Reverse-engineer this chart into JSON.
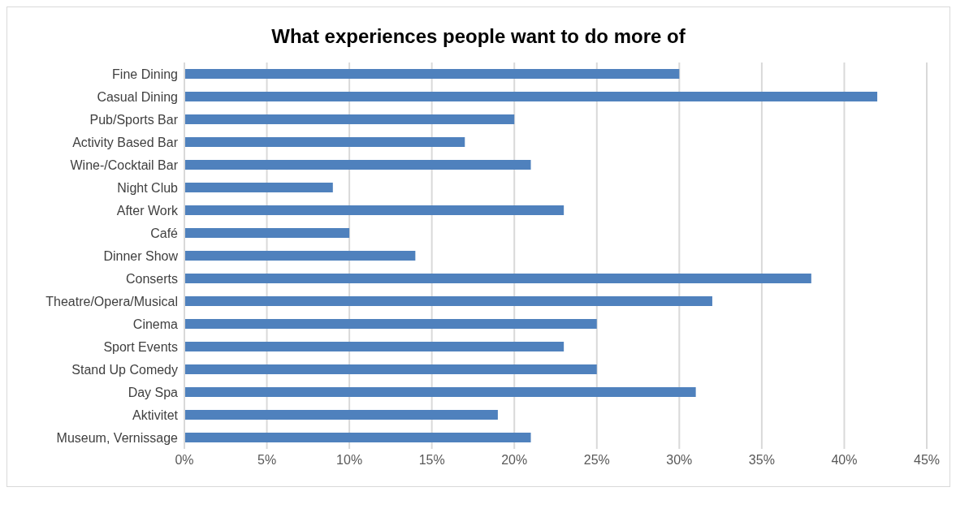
{
  "chart_data": {
    "type": "bar",
    "orientation": "horizontal",
    "title": "What experiences people want to do more of",
    "categories": [
      "Fine Dining",
      "Casual Dining",
      "Pub/Sports Bar",
      "Activity Based Bar",
      "Wine-/Cocktail Bar",
      "Night Club",
      "After Work",
      "Café",
      "Dinner Show",
      "Conserts",
      "Theatre/Opera/Musical",
      "Cinema",
      "Sport Events",
      "Stand Up Comedy",
      "Day Spa",
      "Aktivitet",
      "Museum, Vernissage"
    ],
    "values": [
      30,
      42,
      20,
      17,
      21,
      9,
      23,
      10,
      14,
      38,
      32,
      25,
      23,
      25,
      31,
      19,
      21
    ],
    "color": "#4f81bd",
    "xlim": [
      0,
      45
    ],
    "xticks": [
      {
        "value": 0,
        "label": "0%"
      },
      {
        "value": 5,
        "label": "5%"
      },
      {
        "value": 10,
        "label": "10%"
      },
      {
        "value": 15,
        "label": "15%"
      },
      {
        "value": 20,
        "label": "20%"
      },
      {
        "value": 25,
        "label": "25%"
      },
      {
        "value": 30,
        "label": "30%"
      },
      {
        "value": 35,
        "label": "35%"
      },
      {
        "value": 40,
        "label": "40%"
      },
      {
        "value": 45,
        "label": "45%"
      }
    ],
    "grid": "x",
    "legend": false
  }
}
